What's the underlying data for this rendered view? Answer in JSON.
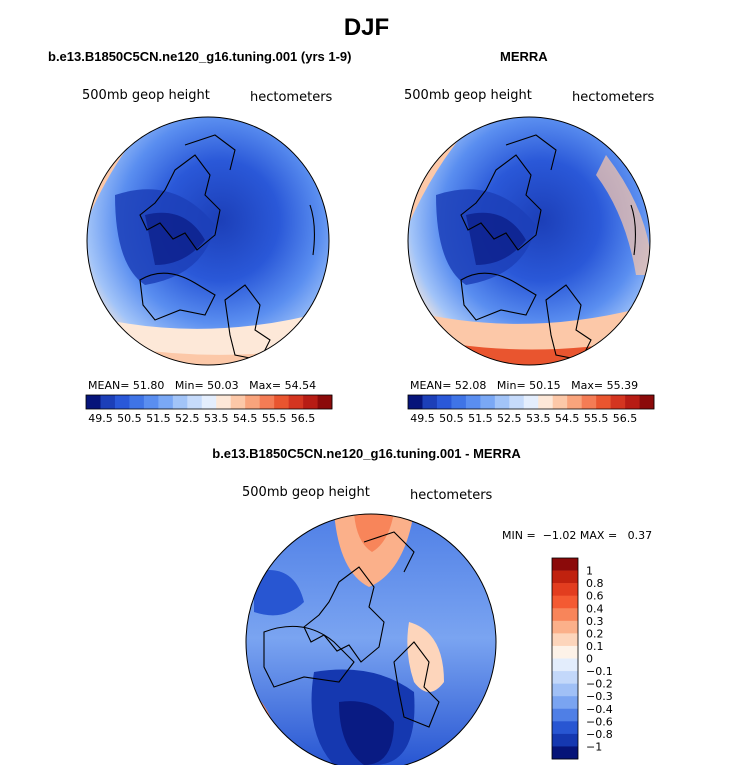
{
  "main_title": "DJF",
  "chart_data": [
    {
      "type": "heatmap",
      "projection": "north-polar-stereographic",
      "title": "b.e13.B1850C5CN.ne120_g16.tuning.001 (yrs 1-9)",
      "left_label": "500mb geop height",
      "right_label": "hectometers",
      "stats": {
        "mean_label": "MEAN=",
        "mean": "51.80",
        "min_label": "Min=",
        "min": "50.03",
        "max_label": "Max=",
        "max": "54.54"
      },
      "colorbar_levels": [
        "49.5",
        "50.5",
        "51.5",
        "52.5",
        "53.5",
        "54.5",
        "55.5",
        "56.5"
      ],
      "colorbar_colors": [
        "#06147a",
        "#1c3fb8",
        "#2a58d8",
        "#3f74e6",
        "#5a8ef0",
        "#7aa8f5",
        "#a2c4f8",
        "#c6dbfb",
        "#e4eefd",
        "#fde8d8",
        "#fcc8a8",
        "#f9a47c",
        "#f47c55",
        "#e9552f",
        "#d43520",
        "#b71c14",
        "#8b0a0a"
      ]
    },
    {
      "type": "heatmap",
      "projection": "north-polar-stereographic",
      "title": "MERRA",
      "left_label": "500mb geop height",
      "right_label": "hectometers",
      "stats": {
        "mean_label": "MEAN=",
        "mean": "52.08",
        "min_label": "Min=",
        "min": "50.15",
        "max_label": "Max=",
        "max": "55.39"
      },
      "colorbar_levels": [
        "49.5",
        "50.5",
        "51.5",
        "52.5",
        "53.5",
        "54.5",
        "55.5",
        "56.5"
      ],
      "colorbar_colors": [
        "#06147a",
        "#1c3fb8",
        "#2a58d8",
        "#3f74e6",
        "#5a8ef0",
        "#7aa8f5",
        "#a2c4f8",
        "#c6dbfb",
        "#e4eefd",
        "#fde8d8",
        "#fcc8a8",
        "#f9a47c",
        "#f47c55",
        "#e9552f",
        "#d43520",
        "#b71c14",
        "#8b0a0a"
      ]
    },
    {
      "type": "heatmap",
      "projection": "north-polar-stereographic",
      "title": "b.e13.B1850C5CN.ne120_g16.tuning.001 - MERRA",
      "left_label": "500mb geop height",
      "right_label": "hectometers",
      "stats": {
        "min_label": "MIN =",
        "min": "−1.02",
        "max_label": "MAX =",
        "max": "0.37"
      },
      "colorbar_levels": [
        "1",
        "0.8",
        "0.6",
        "0.4",
        "0.3",
        "0.2",
        "0.1",
        "0",
        "−0.1",
        "−0.2",
        "−0.3",
        "−0.4",
        "−0.6",
        "−0.8",
        "−1"
      ],
      "colorbar_colors": [
        "#8b0a0a",
        "#c0220f",
        "#e23d1f",
        "#f45a32",
        "#f8855a",
        "#fbb08a",
        "#fdd5bb",
        "#fdf2e8",
        "#e3edfc",
        "#c3d8fa",
        "#a0c0f6",
        "#7aa4f1",
        "#4f7fe6",
        "#2856d2",
        "#1538b0",
        "#061478"
      ]
    }
  ]
}
